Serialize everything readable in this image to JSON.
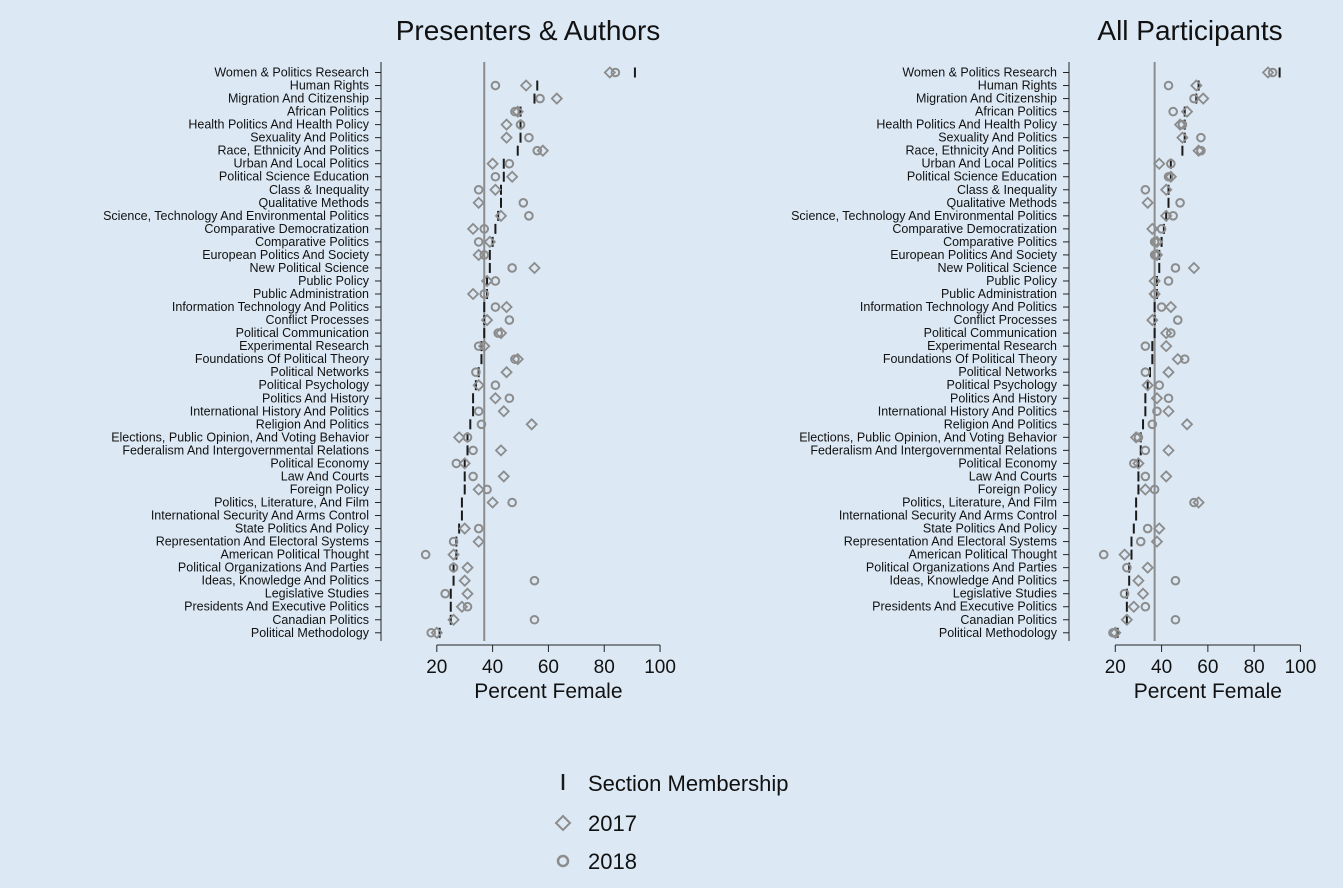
{
  "colors": {
    "background": "#dce9f5",
    "marker": "#8c8c8c",
    "membership": "#1a1a1a",
    "mean_line": "#8c8c8c"
  },
  "legend": {
    "items": [
      {
        "label": "Section Membership",
        "marker": "dash"
      },
      {
        "label": "2017",
        "marker": "diamond"
      },
      {
        "label": "2018",
        "marker": "circle"
      }
    ]
  },
  "chart_data": [
    {
      "type": "scatter",
      "title": "Presenters & Authors",
      "xlabel": "Percent Female",
      "xlim": [
        0,
        105
      ],
      "xticks": [
        20,
        40,
        60,
        80,
        100
      ],
      "mean_line": 37,
      "categories": [
        "Women & Politics Research",
        "Human Rights",
        "Migration And Citizenship",
        "African Politics",
        "Health Politics And Health Policy",
        "Sexuality And Politics",
        "Race, Ethnicity And Politics",
        "Urban And Local Politics",
        "Political Science Education",
        "Class & Inequality",
        "Qualitative Methods",
        "Science, Technology And Environmental Politics",
        "Comparative Democratization",
        "Comparative Politics",
        "European Politics And Society",
        "New Political Science",
        "Public Policy",
        "Public Administration",
        "Information Technology And Politics",
        "Conflict Processes",
        "Political Communication",
        "Experimental Research",
        "Foundations Of Political Theory",
        "Political Networks",
        "Political Psychology",
        "Politics And History",
        "International History And Politics",
        "Religion And Politics",
        "Elections, Public Opinion, And Voting Behavior",
        "Federalism And Intergovernmental Relations",
        "Political Economy",
        "Law And Courts",
        "Foreign Policy",
        "Politics, Literature, And Film",
        "International Security And Arms Control",
        "State Politics And Policy",
        "Representation And Electoral Systems",
        "American Political Thought",
        "Political Organizations And Parties",
        "Ideas, Knowledge And Politics",
        "Legislative Studies",
        "Presidents And Executive Politics",
        "Canadian Politics",
        "Political Methodology"
      ],
      "series": [
        {
          "name": "Section Membership",
          "marker": "dash",
          "values": [
            91,
            56,
            55,
            50,
            50,
            50,
            49,
            44,
            44,
            43,
            43,
            42,
            41,
            40,
            39,
            39,
            38,
            38,
            37,
            37,
            37,
            36,
            36,
            35,
            34,
            33,
            33,
            32,
            31,
            31,
            30,
            30,
            30,
            29,
            29,
            28,
            27,
            27,
            26,
            26,
            25,
            25,
            25,
            21
          ]
        },
        {
          "name": "2017",
          "marker": "diamond",
          "values": [
            82,
            52,
            63,
            49,
            45,
            45,
            58,
            40,
            47,
            41,
            35,
            43,
            33,
            39,
            35,
            55,
            38,
            33,
            45,
            38,
            43,
            37,
            49,
            45,
            35,
            41,
            44,
            54,
            28,
            43,
            30,
            44,
            35,
            40,
            null,
            30,
            35,
            26,
            31,
            30,
            31,
            29,
            26,
            20
          ]
        },
        {
          "name": "2018",
          "marker": "circle",
          "values": [
            84,
            41,
            57,
            48,
            50,
            53,
            56,
            46,
            41,
            35,
            51,
            53,
            37,
            35,
            37,
            47,
            41,
            37,
            41,
            46,
            42,
            35,
            48,
            34,
            41,
            46,
            35,
            36,
            31,
            33,
            27,
            33,
            38,
            47,
            null,
            35,
            26,
            16,
            26,
            55,
            23,
            31,
            55,
            18
          ]
        }
      ]
    },
    {
      "type": "scatter",
      "title": "All Participants",
      "xlabel": "Percent Female",
      "xlim": [
        0,
        105
      ],
      "xticks": [
        20,
        40,
        60,
        80,
        100
      ],
      "mean_line": 37,
      "categories": [
        "Women & Politics Research",
        "Human Rights",
        "Migration And Citizenship",
        "African Politics",
        "Health Politics And Health Policy",
        "Sexuality And Politics",
        "Race, Ethnicity And Politics",
        "Urban And Local Politics",
        "Political Science Education",
        "Class & Inequality",
        "Qualitative Methods",
        "Science, Technology And Environmental Politics",
        "Comparative Democratization",
        "Comparative Politics",
        "European Politics And Society",
        "New Political Science",
        "Public Policy",
        "Public Administration",
        "Information Technology And Politics",
        "Conflict Processes",
        "Political Communication",
        "Experimental Research",
        "Foundations Of Political Theory",
        "Political Networks",
        "Political Psychology",
        "Politics And History",
        "International History And Politics",
        "Religion And Politics",
        "Elections, Public Opinion, And Voting Behavior",
        "Federalism And Intergovernmental Relations",
        "Political Economy",
        "Law And Courts",
        "Foreign Policy",
        "Politics, Literature, And Film",
        "International Security And Arms Control",
        "State Politics And Policy",
        "Representation And Electoral Systems",
        "American Political Thought",
        "Political Organizations And Parties",
        "Ideas, Knowledge And Politics",
        "Legislative Studies",
        "Presidents And Executive Politics",
        "Canadian Politics",
        "Political Methodology"
      ],
      "series": [
        {
          "name": "Section Membership",
          "marker": "dash",
          "values": [
            91,
            56,
            55,
            50,
            50,
            50,
            49,
            44,
            44,
            43,
            43,
            42,
            41,
            40,
            39,
            39,
            38,
            38,
            37,
            37,
            37,
            36,
            36,
            35,
            34,
            33,
            33,
            32,
            31,
            31,
            30,
            30,
            30,
            29,
            29,
            28,
            27,
            27,
            26,
            26,
            25,
            25,
            25,
            21
          ]
        },
        {
          "name": "2017",
          "marker": "diamond",
          "values": [
            86,
            55,
            58,
            51,
            48,
            49,
            56,
            39,
            44,
            42,
            34,
            42,
            36,
            38,
            38,
            54,
            37,
            37,
            44,
            36,
            42,
            42,
            47,
            43,
            34,
            38,
            43,
            51,
            29,
            43,
            30,
            42,
            33,
            56,
            null,
            39,
            38,
            24,
            34,
            30,
            32,
            28,
            25,
            20
          ]
        },
        {
          "name": "2018",
          "marker": "circle",
          "values": [
            88,
            43,
            54,
            45,
            49,
            57,
            57,
            44,
            43,
            33,
            48,
            45,
            40,
            37,
            37,
            46,
            43,
            37,
            40,
            47,
            44,
            33,
            50,
            33,
            39,
            43,
            38,
            36,
            30,
            33,
            28,
            33,
            37,
            54,
            null,
            34,
            31,
            15,
            25,
            46,
            24,
            33,
            46,
            19
          ]
        }
      ]
    }
  ]
}
